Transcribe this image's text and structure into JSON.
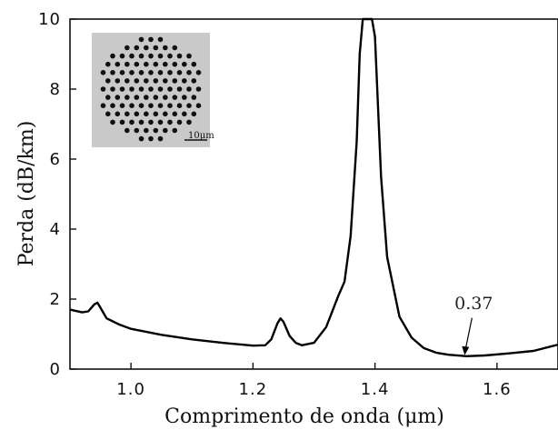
{
  "chart_data": {
    "type": "line",
    "xlabel": "Comprimento de onda (μm)",
    "ylabel": "Perda (dB/km)",
    "xlim": [
      0.9,
      1.7
    ],
    "ylim": [
      0,
      10
    ],
    "x_ticks": [
      "1.0",
      "1.2",
      "1.4",
      "1.6"
    ],
    "y_ticks": [
      "0",
      "2",
      "4",
      "6",
      "8",
      "10"
    ],
    "grid": false,
    "series": [
      {
        "x": [
          0.9,
          0.92,
          0.93,
          0.94,
          0.945,
          0.95,
          0.96,
          0.98,
          1.0,
          1.05,
          1.1,
          1.15,
          1.2,
          1.22,
          1.23,
          1.24,
          1.245,
          1.25,
          1.26,
          1.27,
          1.28,
          1.3,
          1.32,
          1.34,
          1.35,
          1.36,
          1.37,
          1.375,
          1.38,
          1.39,
          1.395,
          1.4,
          1.41,
          1.42,
          1.44,
          1.46,
          1.48,
          1.5,
          1.52,
          1.55,
          1.58,
          1.62,
          1.66,
          1.7
        ],
        "y": [
          1.7,
          1.62,
          1.65,
          1.85,
          1.9,
          1.75,
          1.45,
          1.28,
          1.15,
          0.98,
          0.85,
          0.75,
          0.67,
          0.68,
          0.85,
          1.3,
          1.45,
          1.35,
          0.95,
          0.75,
          0.68,
          0.75,
          1.2,
          2.1,
          2.5,
          3.8,
          6.5,
          9.0,
          10.0,
          10.0,
          10.0,
          9.5,
          5.5,
          3.2,
          1.5,
          0.9,
          0.6,
          0.47,
          0.41,
          0.37,
          0.39,
          0.45,
          0.52,
          0.7
        ]
      }
    ],
    "annotations": [
      {
        "text": "0.37",
        "x": 1.55,
        "y": 0.37
      }
    ],
    "inset": {
      "scale_label": "10μm"
    }
  }
}
